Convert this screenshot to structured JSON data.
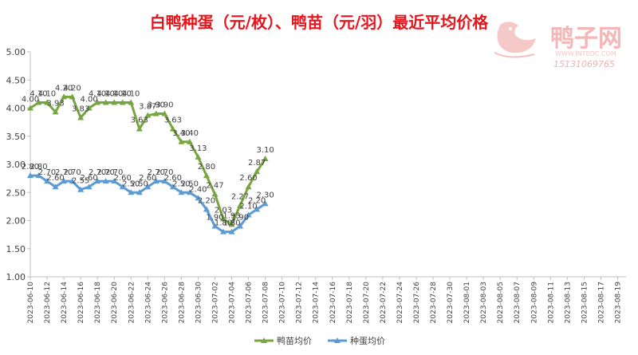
{
  "chart_data": {
    "type": "line",
    "title": "白鸭种蛋（元/枚）、鸭苗（元/羽）最近平均价格",
    "ylim": [
      1.0,
      5.0
    ],
    "yticks": [
      "1.00",
      "1.50",
      "2.00",
      "2.50",
      "3.00",
      "3.50",
      "4.00",
      "4.50",
      "5.00"
    ],
    "x_ticks": [
      "2023-06-10",
      "2023-06-12",
      "2023-06-14",
      "2023-06-16",
      "2023-06-18",
      "2023-06-20",
      "2023-06-22",
      "2023-06-24",
      "2023-06-26",
      "2023-06-28",
      "2023-06-30",
      "2023-07-02",
      "2023-07-04",
      "2023-07-06",
      "2023-07-08",
      "2023-07-10",
      "2023-07-12",
      "2023-07-14",
      "2023-07-16",
      "2023-07-18",
      "2023-07-20",
      "2023-07-22",
      "2023-07-24",
      "2023-07-26",
      "2023-07-28",
      "2023-07-30",
      "2023-08-01",
      "2023-08-03",
      "2023-08-05",
      "2023-08-07",
      "2023-08-09",
      "2023-08-11",
      "2023-08-13",
      "2023-08-15",
      "2023-08-17",
      "2023-08-19"
    ],
    "x_start": "2023-06-10",
    "x_end": "2023-08-20",
    "dates": [
      "2023-06-10",
      "2023-06-11",
      "2023-06-12",
      "2023-06-13",
      "2023-06-14",
      "2023-06-15",
      "2023-06-16",
      "2023-06-17",
      "2023-06-18",
      "2023-06-19",
      "2023-06-20",
      "2023-06-21",
      "2023-06-22",
      "2023-06-23",
      "2023-06-24",
      "2023-06-25",
      "2023-06-26",
      "2023-06-27",
      "2023-06-28",
      "2023-06-29",
      "2023-06-30",
      "2023-07-01",
      "2023-07-02",
      "2023-07-03",
      "2023-07-04",
      "2023-07-05",
      "2023-07-06",
      "2023-07-07",
      "2023-07-08"
    ],
    "series": [
      {
        "name": "鸭苗均价",
        "color": "#77a641",
        "marker": "triangle",
        "values": [
          4.0,
          4.1,
          4.1,
          3.93,
          4.2,
          4.2,
          3.83,
          4.0,
          4.1,
          4.1,
          4.1,
          4.1,
          4.1,
          3.63,
          3.87,
          3.9,
          3.9,
          3.63,
          3.4,
          3.4,
          3.13,
          2.8,
          2.47,
          2.03,
          1.93,
          2.27,
          2.6,
          2.87,
          3.1
        ],
        "labels": [
          "4.00",
          "4.10",
          "4.10",
          "3.93",
          "4.20",
          "4.20",
          "3.83",
          "4.00",
          "4.10",
          "4.10",
          "4.10",
          "4.10",
          "4.10",
          "3.63",
          "3.87",
          "3.90",
          "3.90",
          "3.63",
          "3.40",
          "3.40",
          "3.13",
          "2.80",
          "2.47",
          "2.03",
          "1.93",
          "2.27",
          "2.60",
          "2.87",
          "3.10"
        ]
      },
      {
        "name": "种蛋均价",
        "color": "#5b9bd5",
        "marker": "triangle",
        "values": [
          2.8,
          2.8,
          2.7,
          2.6,
          2.7,
          2.7,
          2.55,
          2.6,
          2.7,
          2.7,
          2.7,
          2.6,
          2.5,
          2.5,
          2.6,
          2.7,
          2.7,
          2.6,
          2.5,
          2.5,
          2.4,
          2.2,
          1.9,
          1.8,
          1.8,
          1.9,
          2.1,
          2.2,
          2.3
        ],
        "labels": [
          "2.80",
          "2.80",
          "2.70",
          "2.60",
          "2.70",
          "2.70",
          "2.55",
          "2.60",
          "2.70",
          "2.70",
          "2.70",
          "2.60",
          "2.50",
          "2.50",
          "2.60",
          "2.70",
          "2.70",
          "2.60",
          "2.50",
          "2.50",
          "2.40",
          "2.20",
          "1.90",
          "1.80",
          "1.80",
          "1.90",
          "2.10",
          "2.20",
          "2.30"
        ]
      }
    ],
    "legend": "bottom",
    "grid": false
  },
  "watermark": {
    "name": "鸭子网",
    "site": "WWW.INTEDC.COM",
    "phone": "15131069765"
  }
}
